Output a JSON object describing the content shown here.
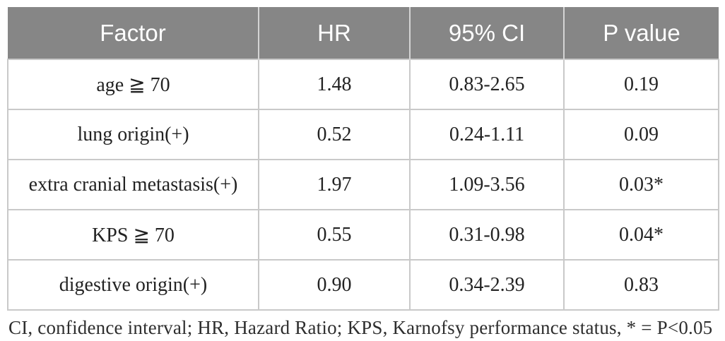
{
  "table": {
    "columns": [
      {
        "key": "factor",
        "label": "Factor"
      },
      {
        "key": "hr",
        "label": "HR"
      },
      {
        "key": "ci",
        "label": "95% CI"
      },
      {
        "key": "p",
        "label": "P value"
      }
    ],
    "rows": [
      {
        "factor": "age ≧ 70",
        "hr": "1.48",
        "ci": "0.83-2.65",
        "p": "0.19"
      },
      {
        "factor": "lung origin(+)",
        "hr": "0.52",
        "ci": "0.24-1.11",
        "p": "0.09"
      },
      {
        "factor": "extra cranial metastasis(+)",
        "hr": "1.97",
        "ci": "1.09-3.56",
        "p": "0.03*"
      },
      {
        "factor": "KPS ≧ 70",
        "hr": "0.55",
        "ci": "0.31-0.98",
        "p": "0.04*"
      },
      {
        "factor": "digestive origin(+)",
        "hr": "0.90",
        "ci": "0.34-2.39",
        "p": "0.83"
      }
    ],
    "footnote": "CI, confidence interval; HR, Hazard Ratio; KPS, Karnofsy performance status, * = P<0.05"
  },
  "colors": {
    "header_background": "#868686",
    "header_text": "#ffffff",
    "grid_border": "#c9c9c9",
    "body_text": "#232323"
  }
}
